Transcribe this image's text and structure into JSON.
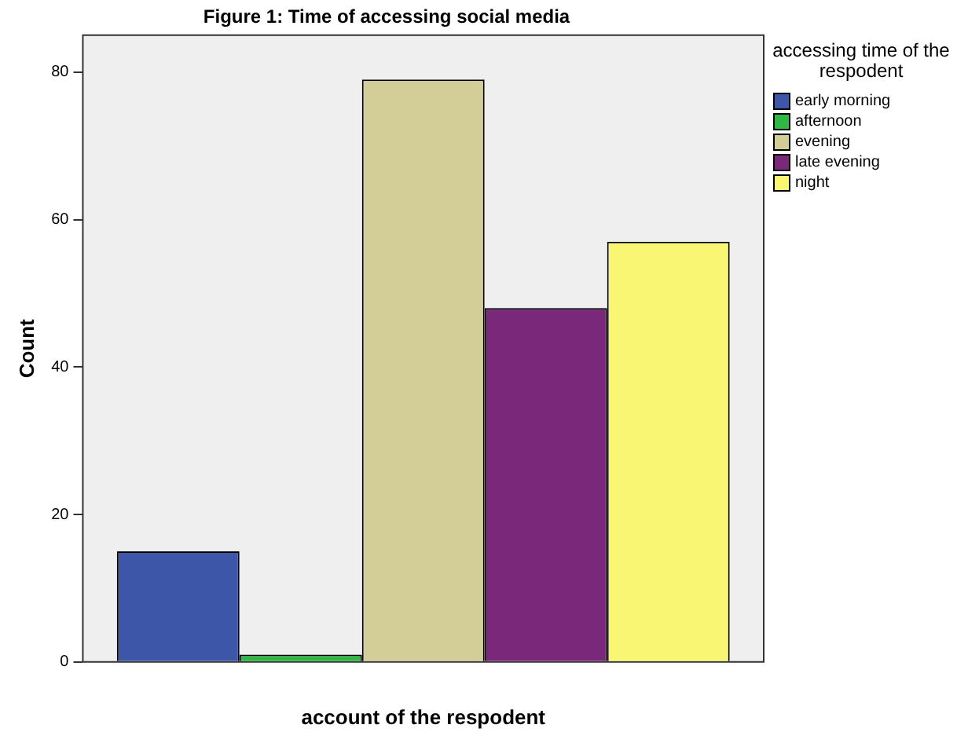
{
  "chart_data": {
    "type": "bar",
    "title": "Figure 1: Time of accessing social media",
    "xlabel": "account of the respodent",
    "ylabel": "Count",
    "legend_title": "accessing time of the respodent",
    "categories": [
      null
    ],
    "series": [
      {
        "name": "early morning",
        "color": "#3d56a8",
        "values": [
          15
        ]
      },
      {
        "name": "afternoon",
        "color": "#2fb844",
        "values": [
          1
        ]
      },
      {
        "name": "evening",
        "color": "#d3cd97",
        "values": [
          79
        ]
      },
      {
        "name": "late evening",
        "color": "#79287a",
        "values": [
          48
        ]
      },
      {
        "name": "night",
        "color": "#f9f674",
        "values": [
          57
        ]
      }
    ],
    "ylim": [
      0,
      85
    ],
    "yticks": [
      0,
      20,
      40,
      60,
      80
    ],
    "grid": false,
    "legend": "top right"
  }
}
